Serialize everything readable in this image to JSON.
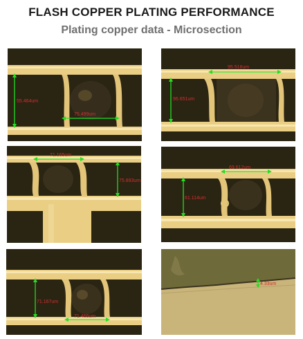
{
  "header": {
    "title": "FLASH COPPER PLATING PERFORMANCE",
    "subtitle": "Plating copper data  - Microsection"
  },
  "panels": [
    {
      "id": "p1",
      "measurements": [
        "55.464um",
        "75.499um"
      ]
    },
    {
      "id": "p2",
      "measurements": [
        "95.516um",
        "96.651um"
      ]
    },
    {
      "id": "p3",
      "measurements": [
        "71.165um",
        "75.893um"
      ]
    },
    {
      "id": "p4",
      "measurements": [
        "69.612um",
        "61.114um"
      ]
    },
    {
      "id": "p5",
      "measurements": [
        "71.167um",
        "71.466um"
      ]
    },
    {
      "id": "p6",
      "measurements": [
        "4.33um"
      ]
    }
  ],
  "colors": {
    "copper": "#e8cc82",
    "copper_bright": "#f5e2a8",
    "substrate_dark": "#2a2412",
    "measure_line": "#22e022",
    "measure_text": "#d13030"
  }
}
